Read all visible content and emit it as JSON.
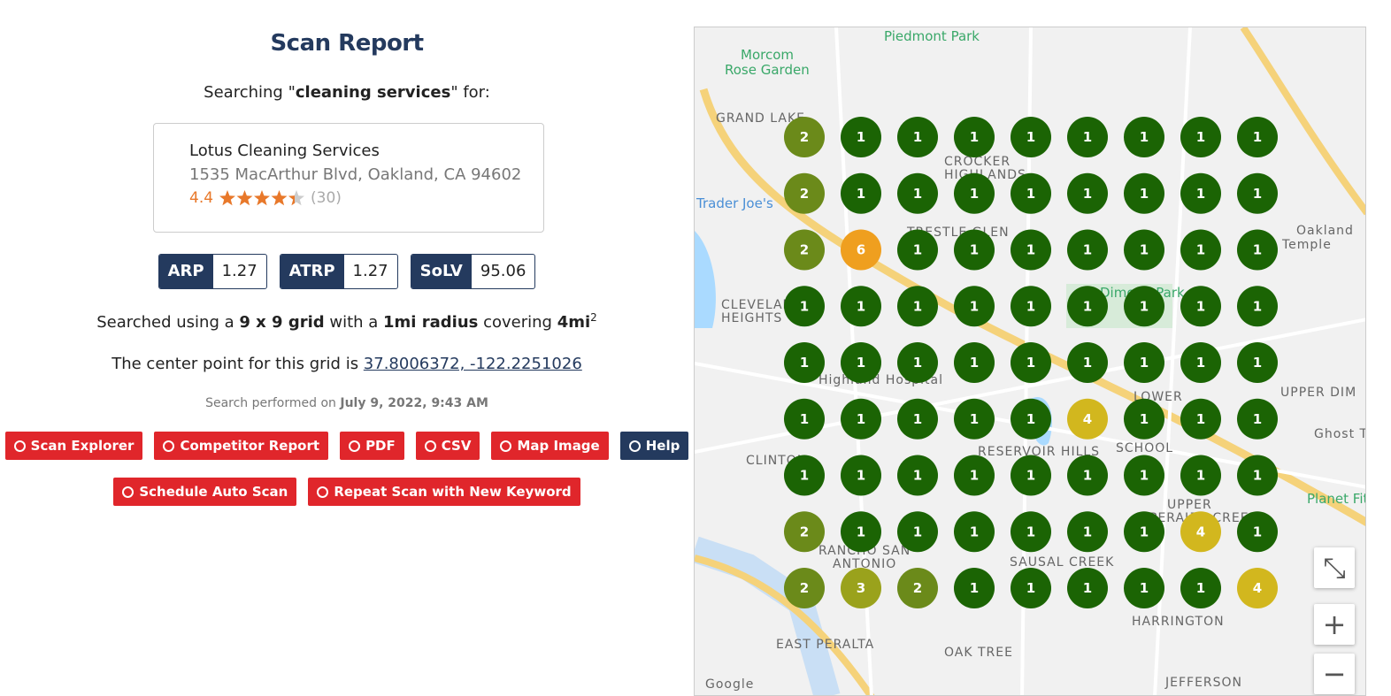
{
  "header": {
    "title": "Scan Report"
  },
  "search": {
    "prefix": "Searching \"",
    "keyword": "cleaning services",
    "suffix": "\" for:"
  },
  "business": {
    "name": "Lotus Cleaning Services",
    "address": "1535 MacArthur Blvd, Oakland, CA 94602",
    "rating": 4.4,
    "review_count": "(30)"
  },
  "metrics": [
    {
      "label": "ARP",
      "value": 1.27
    },
    {
      "label": "ATRP",
      "value": 1.27
    },
    {
      "label": "SoLV",
      "value": 95.06
    }
  ],
  "grid_info": {
    "t1": "Searched using a ",
    "grid": "9 x 9 grid",
    "t2": " with a ",
    "radius": "1mi radius",
    "t3": " covering ",
    "area": "4mi",
    "area_exp": "2"
  },
  "center": {
    "text": "The center point for this grid is ",
    "coords": "37.8006372, -122.2251026"
  },
  "performed": {
    "text": "Search performed on ",
    "date": "July 9, 2022, 9:43 AM"
  },
  "buttons": [
    "Scan Explorer",
    "Competitor Report",
    "PDF",
    "CSV",
    "Map Image",
    "Help",
    "Schedule Auto Scan",
    "Repeat Scan with New Keyword"
  ],
  "map": {
    "grid": [
      [
        2,
        1,
        1,
        1,
        1,
        1,
        1,
        1,
        1
      ],
      [
        2,
        1,
        1,
        1,
        1,
        1,
        1,
        1,
        1
      ],
      [
        2,
        6,
        1,
        1,
        1,
        1,
        1,
        1,
        1
      ],
      [
        1,
        1,
        1,
        1,
        1,
        1,
        1,
        1,
        1
      ],
      [
        1,
        1,
        1,
        1,
        1,
        1,
        1,
        1,
        1
      ],
      [
        1,
        1,
        1,
        1,
        1,
        4,
        1,
        1,
        1
      ],
      [
        1,
        1,
        1,
        1,
        1,
        1,
        1,
        1,
        1
      ],
      [
        2,
        1,
        1,
        1,
        1,
        1,
        1,
        4,
        1
      ],
      [
        2,
        3,
        2,
        1,
        1,
        1,
        1,
        1,
        4
      ]
    ],
    "rank_colors": {
      "1": "#1b6404",
      "2": "#6b8a1a",
      "3": "#9aa21c",
      "4": "#d2b71e",
      "6": "#ef9f1f"
    },
    "labels": [
      "Piedmont Park",
      "Morcom",
      "Rose Garden",
      "GRAND LAKE",
      "CROCKER",
      "HIGHLANDS",
      "Trader Joe's",
      "TRESTLE GLEN",
      "CLEVELAND",
      "HEIGHTS",
      "Highland Hospital",
      "RESERVOIR HILLS",
      "SCHOOL",
      "LOWER",
      "UPPER DIM",
      "CLINTON",
      "UPPER",
      "PERALTA CREEK",
      "RANCHO SAN",
      "ANTONIO",
      "SAUSAL CREEK",
      "HARRINGTON",
      "EAST PERALTA",
      "OAK TREE",
      "JEFFERSON",
      "Oakland",
      "Temple",
      "Ghost T",
      "Planet Fit",
      "Dimond Park",
      "Google"
    ]
  }
}
